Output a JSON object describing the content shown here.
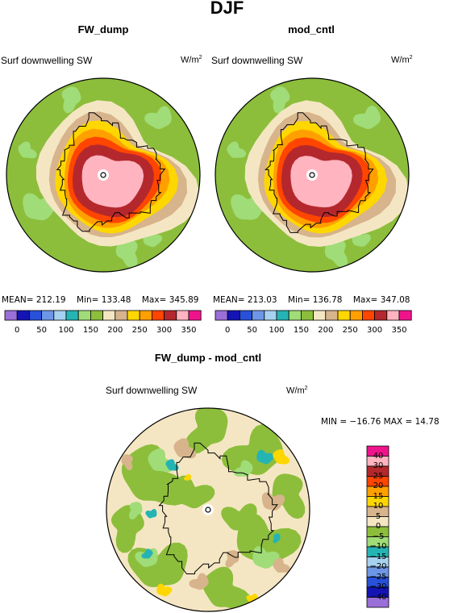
{
  "figure": {
    "season": "DJF",
    "panels": [
      {
        "name": "FW_dump",
        "variable": "Surf downwelling SW",
        "units": "W/m",
        "units_sup": "2",
        "stats": {
          "mean_label": "MEAN=",
          "mean": "212.19",
          "min_label": "Min=",
          "min": "133.48",
          "max_label": "Max=",
          "max": "345.89"
        }
      },
      {
        "name": "mod_cntl",
        "variable": "Surf downwelling SW",
        "units": "W/m",
        "units_sup": "2",
        "stats": {
          "mean_label": "MEAN=",
          "mean": "213.03",
          "min_label": "Min=",
          "min": "136.78",
          "max_label": "Max=",
          "max": "347.08"
        }
      }
    ],
    "diff": {
      "title": "FW_dump - mod_cntl",
      "variable": "Surf downwelling SW",
      "units": "W/m",
      "units_sup": "2",
      "minmax": "MIN = −16.76 MAX =  14.78"
    }
  },
  "colorbar_abs": {
    "labels": [
      "0",
      "50",
      "100",
      "150",
      "200",
      "250",
      "300",
      "350"
    ],
    "colors": [
      "#9a6fd8",
      "#1414b4",
      "#2850d8",
      "#6e96e6",
      "#a6d2f0",
      "#25b4b4",
      "#a0dc78",
      "#8cbe3c",
      "#f5e6c3",
      "#d7b48c",
      "#ffd700",
      "#ffa000",
      "#ff4500",
      "#b4282d",
      "#ffb4c0",
      "#f0148c"
    ]
  },
  "colorbar_diff": {
    "labels": [
      "40",
      "30",
      "25",
      "20",
      "15",
      "10",
      "5",
      "0",
      "−5",
      "−10",
      "−15",
      "−20",
      "−25",
      "−30",
      "−40"
    ],
    "colors": [
      "#f0148c",
      "#ffb4c0",
      "#b4282d",
      "#ff4500",
      "#ffa000",
      "#ffd700",
      "#d7b48c",
      "#f5e6c3",
      "#8cbe3c",
      "#a0dc78",
      "#25b4b4",
      "#a6d2f0",
      "#6e96e6",
      "#2850d8",
      "#1414b4",
      "#9a6fd8"
    ]
  },
  "map_colors": {
    "green": "#8cbe3c",
    "lightgreen": "#a0dc78",
    "cream": "#f5e6c3",
    "tan": "#d7b48c",
    "yellow": "#ffd700",
    "orange": "#ffa000",
    "redorange": "#ff4500",
    "darkred": "#b4282d",
    "pink": "#ffb4c0",
    "teal": "#25b4b4"
  }
}
